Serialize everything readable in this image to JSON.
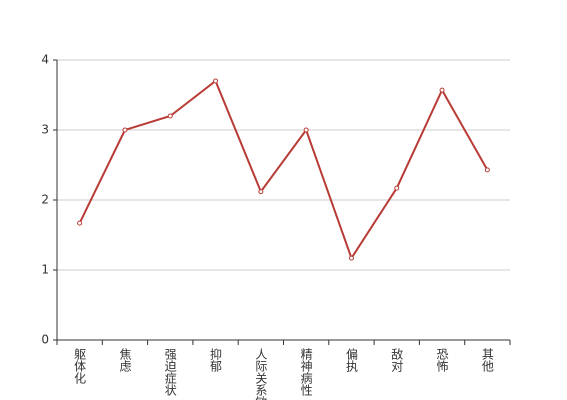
{
  "chart_data": {
    "type": "line",
    "categories": [
      "躯体化",
      "焦虑",
      "强迫症状",
      "抑郁",
      "人际关系敏感",
      "精神病性",
      "偏执",
      "敌对",
      "恐怖",
      "其他"
    ],
    "series": [
      {
        "color": "#b83b35",
        "values": [
          1.67,
          3.0,
          3.2,
          3.7,
          2.12,
          3.0,
          1.17,
          2.17,
          3.57,
          2.43
        ]
      }
    ],
    "ylim": [
      0,
      4
    ],
    "yticks": [
      0,
      1,
      2,
      3,
      4
    ],
    "grid": true
  }
}
